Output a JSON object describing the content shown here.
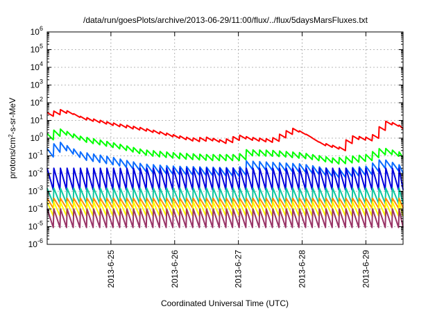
{
  "chart_data": {
    "type": "line",
    "title": "/data/run/goesPlots/archive/2013-06-29/11:00/flux/../flux/5daysMarsFluxes.txt",
    "xlabel": "Coordinated Universal Time (UTC)",
    "ylabel": "protons/cm²-s-sr-MeV",
    "ylabel_parts": {
      "pre": "protons/cm",
      "sup": "2",
      "post": "-s-sr-MeV"
    },
    "xlim": [
      "2013-06-24T00:00",
      "2013-06-29T14:00"
    ],
    "ylim": [
      1e-06,
      1000000.0
    ],
    "yscale": "log",
    "grid": true,
    "x_ticks": [
      {
        "x": "2013-06-25",
        "label": "2013-6-25"
      },
      {
        "x": "2013-06-26",
        "label": "2013-6-26"
      },
      {
        "x": "2013-06-27",
        "label": "2013-6-27"
      },
      {
        "x": "2013-06-28",
        "label": "2013-6-28"
      },
      {
        "x": "2013-06-29",
        "label": "2013-6-29"
      }
    ],
    "y_ticks": [
      {
        "value": 1e-06,
        "base": "10",
        "exp": "-6"
      },
      {
        "value": 1e-05,
        "base": "10",
        "exp": "-5"
      },
      {
        "value": 0.0001,
        "base": "10",
        "exp": "-4"
      },
      {
        "value": 0.001,
        "base": "10",
        "exp": "-3"
      },
      {
        "value": 0.01,
        "base": "10",
        "exp": "-2"
      },
      {
        "value": 0.1,
        "base": "10",
        "exp": "-1"
      },
      {
        "value": 1,
        "base": "10",
        "exp": "0"
      },
      {
        "value": 10,
        "base": "10",
        "exp": "1"
      },
      {
        "value": 100,
        "base": "10",
        "exp": "2"
      },
      {
        "value": 1000,
        "base": "10",
        "exp": "3"
      },
      {
        "value": 10000,
        "base": "10",
        "exp": "4"
      },
      {
        "value": 100000,
        "base": "10",
        "exp": "5"
      },
      {
        "value": 1000000,
        "base": "10",
        "exp": "6"
      }
    ],
    "series": [
      {
        "color": "#ff0000",
        "pattern": "trend",
        "period_hours": 2.5,
        "sawtooth_ratio": 1.6,
        "trend": [
          [
            "2013-06-24T00:00",
            22
          ],
          [
            "2013-06-24T06:00",
            35
          ],
          [
            "2013-06-24T12:00",
            14
          ],
          [
            "2013-06-25T00:00",
            6
          ],
          [
            "2013-06-25T12:00",
            3
          ],
          [
            "2013-06-26T00:00",
            1.2
          ],
          [
            "2013-06-26T06:00",
            0.8
          ],
          [
            "2013-06-26T12:00",
            0.9
          ],
          [
            "2013-06-26T18:00",
            0.6
          ],
          [
            "2013-06-27T00:00",
            1.2
          ],
          [
            "2013-06-27T04:00",
            0.9
          ],
          [
            "2013-06-27T12:00",
            0.7
          ],
          [
            "2013-06-27T20:00",
            3.0
          ],
          [
            "2013-06-28T00:00",
            1.8
          ],
          [
            "2013-06-28T06:00",
            0.5
          ],
          [
            "2013-06-28T14:00",
            0.25
          ],
          [
            "2013-06-28T18:00",
            1.1
          ],
          [
            "2013-06-29T00:00",
            0.9
          ],
          [
            "2013-06-29T04:00",
            1.5
          ],
          [
            "2013-06-29T06:00",
            8
          ],
          [
            "2013-06-29T10:00",
            6
          ],
          [
            "2013-06-29T14:00",
            3.5
          ]
        ]
      },
      {
        "color": "#00ff00",
        "pattern": "trend",
        "period_hours": 2.5,
        "sawtooth_ratio": 2.2,
        "trend": [
          [
            "2013-06-24T00:00",
            1.2
          ],
          [
            "2013-06-24T04:00",
            2.5
          ],
          [
            "2013-06-24T12:00",
            0.9
          ],
          [
            "2013-06-25T00:00",
            0.4
          ],
          [
            "2013-06-25T12:00",
            0.15
          ],
          [
            "2013-06-26T00:00",
            0.1
          ],
          [
            "2013-06-26T12:00",
            0.08
          ],
          [
            "2013-06-27T00:00",
            0.08
          ],
          [
            "2013-06-27T03:00",
            0.15
          ],
          [
            "2013-06-27T12:00",
            0.14
          ],
          [
            "2013-06-28T00:00",
            0.1
          ],
          [
            "2013-06-28T12:00",
            0.05
          ],
          [
            "2013-06-29T00:00",
            0.08
          ],
          [
            "2013-06-29T06:00",
            0.2
          ],
          [
            "2013-06-29T14:00",
            0.1
          ]
        ]
      },
      {
        "color": "#0a6cff",
        "pattern": "trend",
        "period_hours": 2.5,
        "sawtooth_ratio": 3.0,
        "trend": [
          [
            "2013-06-24T00:00",
            0.15
          ],
          [
            "2013-06-24T04:00",
            0.4
          ],
          [
            "2013-06-24T12:00",
            0.1
          ],
          [
            "2013-06-25T00:00",
            0.05
          ],
          [
            "2013-06-25T12:00",
            0.02
          ],
          [
            "2013-06-26T00:00",
            0.015
          ],
          [
            "2013-06-27T00:00",
            0.012
          ],
          [
            "2013-06-27T03:00",
            0.03
          ],
          [
            "2013-06-28T00:00",
            0.02
          ],
          [
            "2013-06-28T12:00",
            0.01
          ],
          [
            "2013-06-29T00:00",
            0.015
          ],
          [
            "2013-06-29T06:00",
            0.04
          ],
          [
            "2013-06-29T14:00",
            0.015
          ]
        ]
      },
      {
        "color": "#0000dd",
        "pattern": "sawtooth",
        "period_hours": 2.5,
        "low": 0.0012,
        "high": 0.02
      },
      {
        "color": "#10c8a0",
        "pattern": "sawtooth",
        "period_hours": 2.5,
        "low": 0.0002,
        "high": 0.0015
      },
      {
        "color": "#ff8c00",
        "pattern": "sawtooth",
        "period_hours": 2.5,
        "low": 0.00011,
        "high": 0.0004
      },
      {
        "color": "#ffff00",
        "pattern": "sawtooth",
        "period_hours": 2.5,
        "low": 4e-05,
        "high": 0.00025
      },
      {
        "color": "#993366",
        "pattern": "sawtooth",
        "period_hours": 2.5,
        "low": 9e-06,
        "high": 0.0001
      }
    ]
  }
}
